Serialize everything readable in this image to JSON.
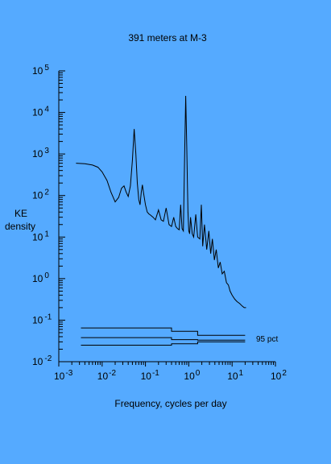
{
  "chart_data": {
    "type": "line",
    "title": "391 meters at M-3",
    "xlabel": "Frequency, cycles per day",
    "ylabel_lines": [
      "KE",
      "density"
    ],
    "xscale": "log",
    "yscale": "log",
    "xlim": [
      0.001,
      100
    ],
    "ylim": [
      0.01,
      100000
    ],
    "x_ticks": [
      {
        "base": "10",
        "exp": "-3",
        "value": 0.001
      },
      {
        "base": "10",
        "exp": "-2",
        "value": 0.01
      },
      {
        "base": "10",
        "exp": "-1",
        "value": 0.1
      },
      {
        "base": "10",
        "exp": "0",
        "value": 1
      },
      {
        "base": "10",
        "exp": "1",
        "value": 10
      },
      {
        "base": "10",
        "exp": "2",
        "value": 100
      }
    ],
    "y_ticks": [
      {
        "base": "10",
        "exp": "-2",
        "value": 0.01
      },
      {
        "base": "10",
        "exp": "-1",
        "value": 0.1
      },
      {
        "base": "10",
        "exp": "0",
        "value": 1
      },
      {
        "base": "10",
        "exp": "1",
        "value": 10
      },
      {
        "base": "10",
        "exp": "2",
        "value": 100
      },
      {
        "base": "10",
        "exp": "3",
        "value": 1000
      },
      {
        "base": "10",
        "exp": "4",
        "value": 10000
      },
      {
        "base": "10",
        "exp": "5",
        "value": 100000
      }
    ],
    "series": [
      {
        "x": [
          0.0025,
          0.004,
          0.006,
          0.008,
          0.01,
          0.013,
          0.016,
          0.02,
          0.024,
          0.028,
          0.032,
          0.036,
          0.04,
          0.045,
          0.05,
          0.055,
          0.06,
          0.065,
          0.07,
          0.075,
          0.08,
          0.085,
          0.09,
          0.1,
          0.11,
          0.12,
          0.13,
          0.15,
          0.17,
          0.2,
          0.23,
          0.26,
          0.3,
          0.35,
          0.4,
          0.45,
          0.5,
          0.55,
          0.6,
          0.65,
          0.7,
          0.75,
          0.8,
          0.85,
          0.9,
          0.93,
          0.96,
          1.0,
          1.05,
          1.1,
          1.2,
          1.3,
          1.45,
          1.6,
          1.8,
          1.95,
          2.1,
          2.3,
          2.6,
          2.9,
          3.2,
          3.5,
          3.9,
          4.3,
          4.8,
          5.3,
          5.9,
          6.6,
          7.4,
          8.2,
          9.0,
          10,
          11.5,
          13,
          15,
          17,
          19,
          21
        ],
        "y": [
          600,
          580,
          540,
          480,
          370,
          230,
          120,
          70,
          90,
          150,
          170,
          120,
          95,
          170,
          700,
          4000,
          1000,
          200,
          80,
          60,
          120,
          180,
          120,
          60,
          40,
          36,
          34,
          30,
          26,
          45,
          26,
          24,
          50,
          20,
          18,
          30,
          18,
          16,
          15,
          60,
          16,
          14,
          800,
          25000,
          1500,
          200,
          40,
          14,
          12,
          30,
          12,
          10,
          35,
          10,
          9,
          60,
          6,
          20,
          5,
          14,
          4,
          9,
          2.8,
          5,
          1.8,
          2.5,
          1.3,
          1.5,
          0.8,
          0.7,
          0.5,
          0.4,
          0.32,
          0.28,
          0.25,
          0.22,
          0.2,
          0.2
        ]
      }
    ],
    "confidence": {
      "label": "95 pct",
      "x_break1": 0.4,
      "x_break2": 1.6,
      "x_end": 20,
      "upper": [
        0.065,
        0.054,
        0.043
      ],
      "middle": [
        0.038,
        0.034,
        0.033
      ],
      "lower": [
        0.025,
        0.027,
        0.03
      ]
    }
  }
}
